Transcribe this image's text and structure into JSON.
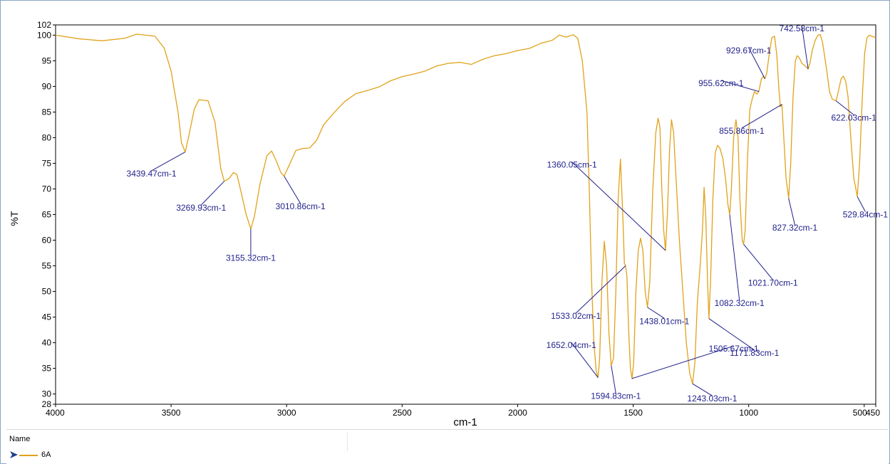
{
  "chart_data": {
    "type": "line",
    "xlabel": "cm-1",
    "ylabel": "%T",
    "xlim": [
      4000,
      450
    ],
    "ylim": [
      28,
      102
    ],
    "x_ticks": [
      4000,
      3500,
      3000,
      2500,
      2000,
      1500,
      1000,
      500,
      450
    ],
    "x_tick_labels": [
      "4000",
      "3500",
      "3000",
      "2500",
      "2000",
      "1500",
      "1000",
      "500",
      "450"
    ],
    "y_ticks": [
      28,
      30,
      35,
      40,
      45,
      50,
      55,
      60,
      65,
      70,
      75,
      80,
      85,
      90,
      95,
      100,
      102
    ],
    "y_tick_labels": [
      "28",
      "30",
      "35",
      "40",
      "45",
      "50",
      "55",
      "60",
      "65",
      "70",
      "75",
      "80",
      "85",
      "90",
      "95",
      "100",
      "102"
    ],
    "line_color": "#e0a21a",
    "annotation_color": "#1f1f8c",
    "series": [
      {
        "name": "6A",
        "points": [
          [
            4000,
            100.0
          ],
          [
            3900,
            99.3
          ],
          [
            3800,
            98.9
          ],
          [
            3700,
            99.4
          ],
          [
            3650,
            100.2
          ],
          [
            3570,
            99.8
          ],
          [
            3530,
            97.5
          ],
          [
            3500,
            93.0
          ],
          [
            3470,
            85.0
          ],
          [
            3455,
            79.0
          ],
          [
            3439,
            77.2
          ],
          [
            3425,
            80.0
          ],
          [
            3400,
            85.5
          ],
          [
            3380,
            87.4
          ],
          [
            3340,
            87.2
          ],
          [
            3310,
            83.0
          ],
          [
            3285,
            74.0
          ],
          [
            3270,
            71.5
          ],
          [
            3250,
            72.0
          ],
          [
            3230,
            73.2
          ],
          [
            3215,
            72.8
          ],
          [
            3195,
            69.0
          ],
          [
            3175,
            65.0
          ],
          [
            3155,
            62.2
          ],
          [
            3140,
            64.5
          ],
          [
            3115,
            71.0
          ],
          [
            3085,
            76.5
          ],
          [
            3065,
            77.4
          ],
          [
            3045,
            75.5
          ],
          [
            3025,
            73.2
          ],
          [
            3011,
            72.5
          ],
          [
            2990,
            74.5
          ],
          [
            2960,
            77.5
          ],
          [
            2930,
            77.9
          ],
          [
            2900,
            78.0
          ],
          [
            2870,
            79.5
          ],
          [
            2840,
            82.5
          ],
          [
            2800,
            84.6
          ],
          [
            2750,
            87.0
          ],
          [
            2700,
            88.6
          ],
          [
            2650,
            89.2
          ],
          [
            2600,
            89.9
          ],
          [
            2550,
            91.1
          ],
          [
            2500,
            91.9
          ],
          [
            2450,
            92.4
          ],
          [
            2400,
            93.0
          ],
          [
            2350,
            94.0
          ],
          [
            2300,
            94.5
          ],
          [
            2250,
            94.7
          ],
          [
            2200,
            94.3
          ],
          [
            2150,
            95.3
          ],
          [
            2100,
            96.0
          ],
          [
            2050,
            96.4
          ],
          [
            2000,
            97.0
          ],
          [
            1950,
            97.4
          ],
          [
            1900,
            98.4
          ],
          [
            1850,
            99.0
          ],
          [
            1820,
            100.0
          ],
          [
            1790,
            99.6
          ],
          [
            1760,
            100.1
          ],
          [
            1740,
            99.4
          ],
          [
            1720,
            95.0
          ],
          [
            1700,
            85.0
          ],
          [
            1690,
            70.0
          ],
          [
            1680,
            52.0
          ],
          [
            1670,
            40.0
          ],
          [
            1660,
            34.5
          ],
          [
            1652,
            33.2
          ],
          [
            1645,
            37.0
          ],
          [
            1635,
            52.0
          ],
          [
            1625,
            59.8
          ],
          [
            1615,
            55.0
          ],
          [
            1605,
            42.0
          ],
          [
            1595,
            35.5
          ],
          [
            1585,
            37.0
          ],
          [
            1575,
            50.0
          ],
          [
            1565,
            68.0
          ],
          [
            1555,
            75.8
          ],
          [
            1545,
            65.0
          ],
          [
            1538,
            55.5
          ],
          [
            1533,
            55.0
          ],
          [
            1527,
            53.0
          ],
          [
            1520,
            43.0
          ],
          [
            1512,
            35.0
          ],
          [
            1505,
            33.0
          ],
          [
            1498,
            36.0
          ],
          [
            1488,
            50.0
          ],
          [
            1478,
            58.0
          ],
          [
            1468,
            60.4
          ],
          [
            1458,
            58.0
          ],
          [
            1448,
            50.0
          ],
          [
            1438,
            46.9
          ],
          [
            1428,
            52.0
          ],
          [
            1415,
            70.0
          ],
          [
            1402,
            81.0
          ],
          [
            1392,
            83.8
          ],
          [
            1384,
            82.0
          ],
          [
            1376,
            70.0
          ],
          [
            1368,
            62.0
          ],
          [
            1360,
            58.0
          ],
          [
            1352,
            65.0
          ],
          [
            1342,
            78.0
          ],
          [
            1334,
            83.5
          ],
          [
            1325,
            81.0
          ],
          [
            1312,
            70.0
          ],
          [
            1300,
            60.0
          ],
          [
            1285,
            50.0
          ],
          [
            1270,
            40.0
          ],
          [
            1255,
            34.0
          ],
          [
            1243,
            32.0
          ],
          [
            1233,
            36.0
          ],
          [
            1222,
            48.0
          ],
          [
            1210,
            55.0
          ],
          [
            1200,
            62.0
          ],
          [
            1193,
            70.3
          ],
          [
            1186,
            65.0
          ],
          [
            1178,
            52.0
          ],
          [
            1172,
            44.7
          ],
          [
            1165,
            52.0
          ],
          [
            1155,
            68.0
          ],
          [
            1145,
            77.0
          ],
          [
            1135,
            78.5
          ],
          [
            1125,
            78.0
          ],
          [
            1112,
            76.0
          ],
          [
            1100,
            72.0
          ],
          [
            1090,
            67.0
          ],
          [
            1082,
            65.0
          ],
          [
            1075,
            70.0
          ],
          [
            1065,
            80.0
          ],
          [
            1055,
            83.5
          ],
          [
            1046,
            80.0
          ],
          [
            1038,
            68.0
          ],
          [
            1028,
            60.0
          ],
          [
            1022,
            59.2
          ],
          [
            1015,
            62.0
          ],
          [
            1005,
            76.0
          ],
          [
            995,
            85.5
          ],
          [
            985,
            87.5
          ],
          [
            975,
            89.0
          ],
          [
            965,
            88.5
          ],
          [
            956,
            89.0
          ],
          [
            945,
            91.5
          ],
          [
            936,
            92.0
          ],
          [
            930,
            91.5
          ],
          [
            922,
            92.5
          ],
          [
            912,
            96.0
          ],
          [
            900,
            99.5
          ],
          [
            888,
            99.8
          ],
          [
            878,
            96.0
          ],
          [
            870,
            90.0
          ],
          [
            863,
            86.0
          ],
          [
            856,
            86.5
          ],
          [
            848,
            80.0
          ],
          [
            838,
            72.0
          ],
          [
            827,
            68.2
          ],
          [
            818,
            75.0
          ],
          [
            808,
            88.0
          ],
          [
            798,
            95.0
          ],
          [
            790,
            96.0
          ],
          [
            780,
            95.5
          ],
          [
            770,
            94.5
          ],
          [
            760,
            94.2
          ],
          [
            743,
            93.4
          ],
          [
            735,
            94.5
          ],
          [
            725,
            97.0
          ],
          [
            712,
            99.0
          ],
          [
            700,
            100.0
          ],
          [
            690,
            100.1
          ],
          [
            680,
            98.5
          ],
          [
            665,
            94.0
          ],
          [
            650,
            89.0
          ],
          [
            638,
            87.5
          ],
          [
            622,
            87.2
          ],
          [
            612,
            89.0
          ],
          [
            600,
            91.5
          ],
          [
            590,
            92.0
          ],
          [
            580,
            91.0
          ],
          [
            570,
            88.0
          ],
          [
            558,
            80.0
          ],
          [
            545,
            72.0
          ],
          [
            538,
            70.5
          ],
          [
            530,
            68.5
          ],
          [
            520,
            75.0
          ],
          [
            508,
            88.0
          ],
          [
            498,
            96.5
          ],
          [
            488,
            99.5
          ],
          [
            478,
            100.0
          ],
          [
            468,
            99.8
          ],
          [
            455,
            99.6
          ],
          [
            450,
            99.5
          ]
        ]
      }
    ],
    "annotations": [
      {
        "label": "3439.47cm-1",
        "x": 3439.47,
        "y": 77.2,
        "label_x": 3585,
        "label_y": 73.0,
        "anchor": "middle"
      },
      {
        "label": "3269.93cm-1",
        "x": 3269.93,
        "y": 71.5,
        "label_x": 3370,
        "label_y": 66.3,
        "anchor": "middle"
      },
      {
        "label": "3155.32cm-1",
        "x": 3155.32,
        "y": 62.2,
        "label_x": 3155,
        "label_y": 56.5,
        "anchor": "middle"
      },
      {
        "label": "3010.86cm-1",
        "x": 3010.86,
        "y": 72.5,
        "label_x": 2940,
        "label_y": 66.6,
        "anchor": "middle"
      },
      {
        "label": "1360.05cm-1",
        "x": 1360.05,
        "y": 58.0,
        "label_x": 1765,
        "label_y": 74.7,
        "anchor": "middle"
      },
      {
        "label": "1533.02cm-1",
        "x": 1533.02,
        "y": 55.0,
        "label_x": 1748,
        "label_y": 45.2,
        "anchor": "middle"
      },
      {
        "label": "1438.01cm-1",
        "x": 1438.01,
        "y": 46.9,
        "label_x": 1365,
        "label_y": 44.2,
        "anchor": "middle"
      },
      {
        "label": "1652.04cm-1",
        "x": 1652.04,
        "y": 33.2,
        "label_x": 1768,
        "label_y": 39.5,
        "anchor": "middle"
      },
      {
        "label": "1594.83cm-1",
        "x": 1594.83,
        "y": 35.5,
        "label_x": 1575,
        "label_y": 29.6,
        "anchor": "middle"
      },
      {
        "label": "1505.67cm-1",
        "x": 1505.67,
        "y": 33.0,
        "label_x": 1065,
        "label_y": 38.8,
        "anchor": "middle"
      },
      {
        "label": "1243.03cm-1",
        "x": 1243.03,
        "y": 32.0,
        "label_x": 1158,
        "label_y": 29.1,
        "anchor": "middle"
      },
      {
        "label": "1171.83cm-1",
        "x": 1171.83,
        "y": 44.7,
        "label_x": 975,
        "label_y": 38.0,
        "anchor": "middle"
      },
      {
        "label": "1082.32cm-1",
        "x": 1082.32,
        "y": 65.0,
        "label_x": 1040,
        "label_y": 47.7,
        "anchor": "middle"
      },
      {
        "label": "1021.70cm-1",
        "x": 1021.7,
        "y": 59.2,
        "label_x": 895,
        "label_y": 51.7,
        "anchor": "middle"
      },
      {
        "label": "955.62cm-1",
        "x": 955.62,
        "y": 89.0,
        "label_x": 1120,
        "label_y": 90.6,
        "anchor": "middle"
      },
      {
        "label": "929.67cm-1",
        "x": 929.67,
        "y": 91.5,
        "label_x": 1000,
        "label_y": 97.0,
        "anchor": "middle"
      },
      {
        "label": "855.86cm-1",
        "x": 855.86,
        "y": 86.5,
        "label_x": 1030,
        "label_y": 81.3,
        "anchor": "middle"
      },
      {
        "label": "827.32cm-1",
        "x": 827.32,
        "y": 68.2,
        "label_x": 800,
        "label_y": 62.4,
        "anchor": "middle"
      },
      {
        "label": "742.58cm-1",
        "x": 742.58,
        "y": 93.4,
        "label_x": 770,
        "label_y": 101.3,
        "anchor": "middle"
      },
      {
        "label": "622.03cm-1",
        "x": 622.03,
        "y": 87.2,
        "label_x": 545,
        "label_y": 83.9,
        "anchor": "middle"
      },
      {
        "label": "529.84cm-1",
        "x": 529.84,
        "y": 68.5,
        "label_x": 495,
        "label_y": 65.0,
        "anchor": "middle"
      }
    ]
  },
  "legend": {
    "header": "Name",
    "items": [
      {
        "label": "6A",
        "color": "#e0a21a"
      }
    ]
  }
}
